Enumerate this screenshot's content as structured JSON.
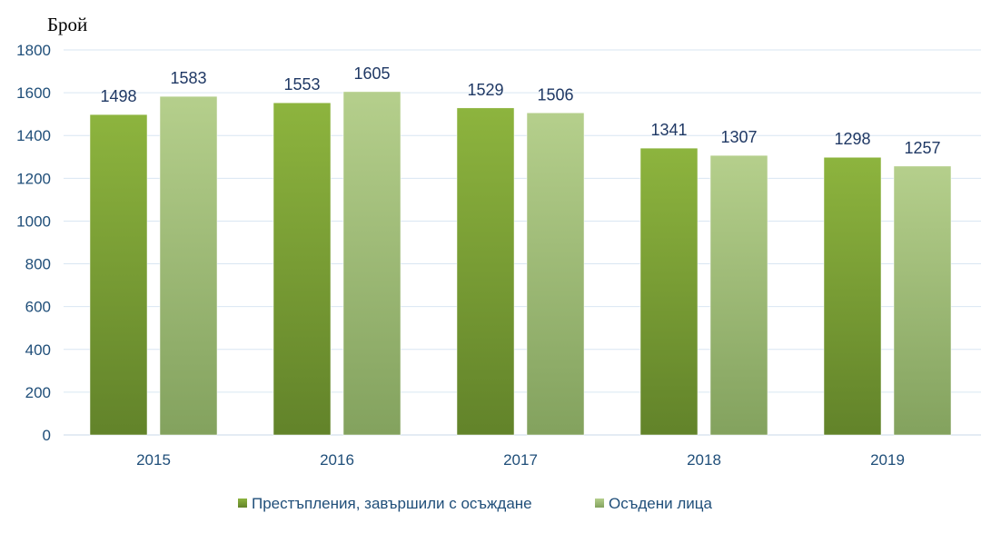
{
  "chart_data": {
    "type": "bar",
    "title": "",
    "xlabel": "",
    "ylabel": "Брой",
    "ylim": [
      0,
      1800
    ],
    "yticks": [
      0,
      200,
      400,
      600,
      800,
      1000,
      1200,
      1400,
      1600,
      1800
    ],
    "categories": [
      "2015",
      "2016",
      "2017",
      "2018",
      "2019"
    ],
    "series": [
      {
        "name": "Престъпления, завършили с осъждане",
        "values": [
          1498,
          1553,
          1529,
          1341,
          1298
        ],
        "color_top": "#8db43e",
        "color_bottom": "#62832a"
      },
      {
        "name": "Осъдени лица",
        "values": [
          1583,
          1605,
          1506,
          1307,
          1257
        ],
        "color_top": "#b5cf8c",
        "color_bottom": "#83a25e"
      }
    ],
    "data_labels": true,
    "grid": true,
    "legend_position": "bottom",
    "colors": {
      "gridline": "#d9e6f2",
      "axis_text": "#1f4e79",
      "label_text": "#1f3864"
    }
  }
}
